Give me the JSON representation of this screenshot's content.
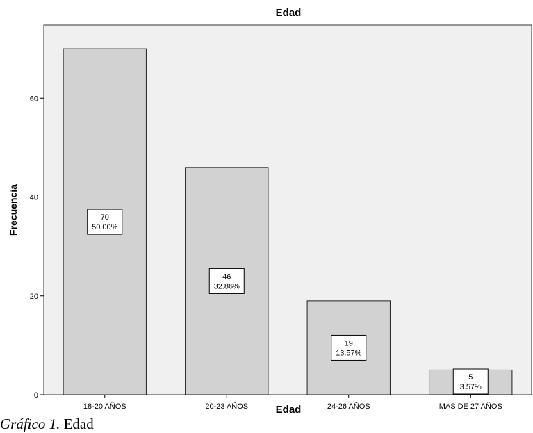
{
  "chart_data": {
    "type": "bar",
    "title": "Edad",
    "xlabel": "Edad",
    "ylabel": "Frecuencia",
    "categories": [
      "18-20 AÑOS",
      "20-23 AÑOS",
      "24-26 AÑOS",
      "MAS DE 27 AÑOS"
    ],
    "values": [
      70,
      46,
      19,
      5
    ],
    "data_labels": [
      {
        "count": "70",
        "percent": "50.00%"
      },
      {
        "count": "46",
        "percent": "32.86%"
      },
      {
        "count": "19",
        "percent": "13.57%"
      },
      {
        "count": "5",
        "percent": "3.57%"
      }
    ],
    "yticks": [
      0,
      20,
      40,
      60
    ],
    "ylim": [
      0,
      74.8
    ],
    "grid": false,
    "legend": "none",
    "colors": {
      "bar_fill": "#d2d2d2",
      "bar_stroke": "#202020",
      "plot_background": "#f0f0f0",
      "label_box": "#ffffff"
    }
  },
  "caption": {
    "label": "Gráfico 1.",
    "text": "Edad"
  }
}
